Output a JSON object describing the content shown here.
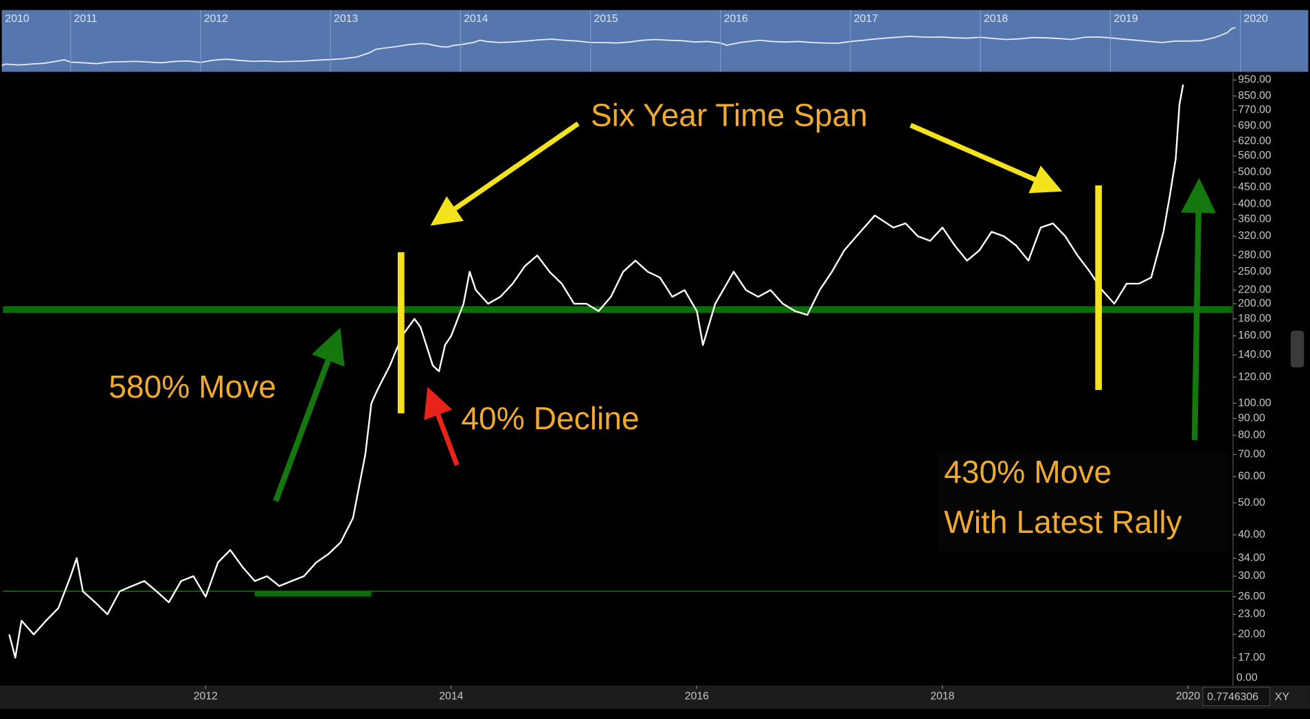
{
  "chart_data": {
    "type": "line",
    "x": [
      2010.4,
      2010.45,
      2010.5,
      2010.6,
      2010.7,
      2010.8,
      2010.9,
      2010.95,
      2011.0,
      2011.1,
      2011.2,
      2011.3,
      2011.4,
      2011.5,
      2011.6,
      2011.7,
      2011.8,
      2011.9,
      2012.0,
      2012.1,
      2012.2,
      2012.3,
      2012.4,
      2012.5,
      2012.6,
      2012.7,
      2012.8,
      2012.9,
      2013.0,
      2013.1,
      2013.2,
      2013.3,
      2013.35,
      2013.4,
      2013.5,
      2013.6,
      2013.7,
      2013.75,
      2013.85,
      2013.9,
      2013.95,
      2014.0,
      2014.1,
      2014.15,
      2014.2,
      2014.3,
      2014.4,
      2014.5,
      2014.6,
      2014.7,
      2014.8,
      2014.9,
      2015.0,
      2015.1,
      2015.2,
      2015.3,
      2015.4,
      2015.5,
      2015.6,
      2015.7,
      2015.8,
      2015.9,
      2016.0,
      2016.05,
      2016.15,
      2016.3,
      2016.4,
      2016.5,
      2016.6,
      2016.7,
      2016.8,
      2016.9,
      2017.0,
      2017.1,
      2017.2,
      2017.3,
      2017.45,
      2017.6,
      2017.7,
      2017.8,
      2017.9,
      2018.0,
      2018.1,
      2018.2,
      2018.3,
      2018.4,
      2018.5,
      2018.6,
      2018.7,
      2018.8,
      2018.9,
      2019.0,
      2019.1,
      2019.2,
      2019.3,
      2019.4,
      2019.5,
      2019.6,
      2019.7,
      2019.8,
      2019.85,
      2019.9,
      2019.93,
      2019.96
    ],
    "series": [
      {
        "color": "#ffffff",
        "values": [
          20,
          17,
          22,
          20,
          22,
          24,
          30,
          34,
          27,
          25,
          23,
          27,
          28,
          29,
          27,
          25,
          29,
          30,
          26,
          33,
          36,
          32,
          29,
          30,
          28,
          29,
          30,
          33,
          35,
          38,
          45,
          70,
          100,
          110,
          130,
          160,
          180,
          170,
          130,
          125,
          150,
          160,
          200,
          250,
          220,
          200,
          210,
          230,
          260,
          280,
          250,
          230,
          200,
          200,
          190,
          210,
          250,
          270,
          250,
          240,
          210,
          220,
          190,
          150,
          200,
          250,
          220,
          210,
          220,
          200,
          190,
          185,
          220,
          250,
          290,
          320,
          370,
          340,
          350,
          320,
          310,
          340,
          300,
          270,
          290,
          330,
          320,
          300,
          270,
          340,
          350,
          320,
          280,
          250,
          220,
          200,
          230,
          230,
          240,
          330,
          420,
          550,
          800,
          920
        ]
      }
    ],
    "xlim": [
      2010.35,
      2020.36
    ],
    "xticks": [
      2012,
      2014,
      2016,
      2018,
      2020
    ],
    "ylim": [
      14,
      1000
    ],
    "log_scale": true,
    "yticks": [
      {
        "value": 950,
        "label": "950.00"
      },
      {
        "value": 850,
        "label": "850.00"
      },
      {
        "value": 770,
        "label": "770.00"
      },
      {
        "value": 690,
        "label": "690.00"
      },
      {
        "value": 620,
        "label": "620.00"
      },
      {
        "value": 560,
        "label": "560.00"
      },
      {
        "value": 500,
        "label": "500.00"
      },
      {
        "value": 450,
        "label": "450.00"
      },
      {
        "value": 400,
        "label": "400.00"
      },
      {
        "value": 360,
        "label": "360.00"
      },
      {
        "value": 320,
        "label": "320.00"
      },
      {
        "value": 280,
        "label": "280.00"
      },
      {
        "value": 250,
        "label": "250.00"
      },
      {
        "value": 220,
        "label": "220.00"
      },
      {
        "value": 200,
        "label": "200.00"
      },
      {
        "value": 180,
        "label": "180.00"
      },
      {
        "value": 160,
        "label": "160.00"
      },
      {
        "value": 140,
        "label": "140.00"
      },
      {
        "value": 120,
        "label": "120.00"
      },
      {
        "value": 100,
        "label": "100.00"
      },
      {
        "value": 90,
        "label": "90.00"
      },
      {
        "value": 80,
        "label": "80.00"
      },
      {
        "value": 70,
        "label": "70.00"
      },
      {
        "value": 60,
        "label": "60.00"
      },
      {
        "value": 50,
        "label": "50.00"
      },
      {
        "value": 40,
        "label": "40.00"
      },
      {
        "value": 34,
        "label": "34.00"
      },
      {
        "value": 30,
        "label": "30.00"
      },
      {
        "value": 26,
        "label": "26.00"
      },
      {
        "value": 23,
        "label": "23.00"
      },
      {
        "value": 20,
        "label": "20.00"
      },
      {
        "value": 17,
        "label": "17.00"
      }
    ],
    "y_floor_label": "0.00",
    "hlines": [
      {
        "value": 192,
        "color": "#0b6e0b",
        "width": 8
      },
      {
        "value": 27,
        "color": "#137a13",
        "width": 1.2
      }
    ],
    "segment": {
      "value": 26.5,
      "x": [
        2012.4,
        2013.35
      ],
      "color": "#0b6e0b"
    },
    "navigator_ticks": [
      2010,
      2011,
      2012,
      2013,
      2014,
      2015,
      2016,
      2017,
      2018,
      2019,
      2020
    ],
    "annotations": [
      "Six Year Time Span",
      "580% Move",
      "40% Decline",
      "430% Move",
      "With Latest Rally"
    ],
    "status_value": "0.7746306",
    "xy_button": "XY"
  }
}
